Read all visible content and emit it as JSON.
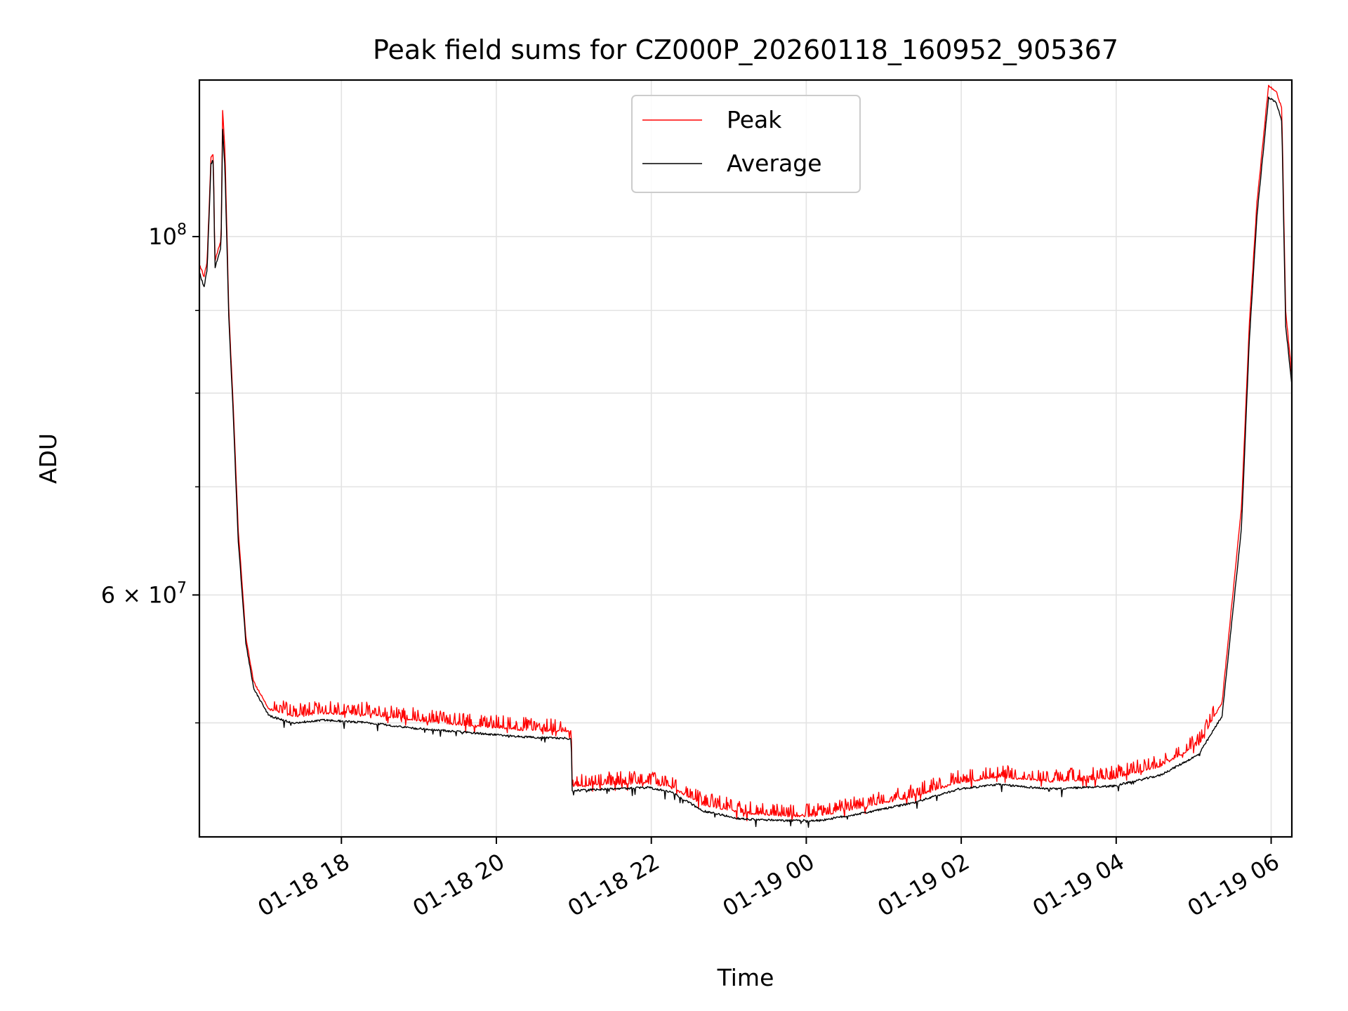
{
  "chart_data": {
    "type": "line",
    "title": "Peak field sums for CZ000P_20260118_160952_905367",
    "xlabel": "Time",
    "ylabel": "ADU",
    "yscale": "log",
    "grid": true,
    "legend_position": "upper-center",
    "x_unit": "hours since 2026-01-18 16:10",
    "x_range": [
      0,
      14.1
    ],
    "ylim": [
      42500000,
      125000000
    ],
    "x_ticks": [
      {
        "x": 1.833,
        "label": "01-18 18"
      },
      {
        "x": 3.833,
        "label": "01-18 20"
      },
      {
        "x": 5.833,
        "label": "01-18 22"
      },
      {
        "x": 7.833,
        "label": "01-19 00"
      },
      {
        "x": 9.833,
        "label": "01-19 02"
      },
      {
        "x": 11.833,
        "label": "01-19 04"
      },
      {
        "x": 13.833,
        "label": "01-19 06"
      }
    ],
    "y_major_ticks": [
      {
        "value": 100000000,
        "base": "10",
        "exp": "8"
      },
      {
        "value": 60000000,
        "base": "6 × 10",
        "exp": "7"
      }
    ],
    "y_minor_ticks": [
      50000000,
      70000000,
      80000000,
      90000000
    ],
    "series": [
      {
        "name": "Peak",
        "color": "#ff0000",
        "points": [
          [
            0,
            96000000
          ],
          [
            0.06,
            94500000
          ],
          [
            0.1,
            96500000
          ],
          [
            0.15,
            112000000
          ],
          [
            0.18,
            112500000
          ],
          [
            0.2,
            96500000
          ],
          [
            0.25,
            98500000
          ],
          [
            0.28,
            99500000
          ],
          [
            0.3,
            120000000
          ],
          [
            0.33,
            113000000
          ],
          [
            0.38,
            90000000
          ],
          [
            0.44,
            78000000
          ],
          [
            0.5,
            66000000
          ],
          [
            0.6,
            56500000
          ],
          [
            0.7,
            53000000
          ],
          [
            0.9,
            51000000
          ],
          [
            1.2,
            50500000
          ],
          [
            1.6,
            50700000
          ],
          [
            2.2,
            50600000
          ],
          [
            2.8,
            50200000
          ],
          [
            3.5,
            49800000
          ],
          [
            4.2,
            49500000
          ],
          [
            4.8,
            49400000
          ],
          [
            4.81,
            45700000
          ],
          [
            5.3,
            45800000
          ],
          [
            5.8,
            45900000
          ],
          [
            6.1,
            45600000
          ],
          [
            6.5,
            44500000
          ],
          [
            7.0,
            44000000
          ],
          [
            7.5,
            43800000
          ],
          [
            8.0,
            43800000
          ],
          [
            8.5,
            44300000
          ],
          [
            9.2,
            45000000
          ],
          [
            9.8,
            45900000
          ],
          [
            10.3,
            46300000
          ],
          [
            11.0,
            46000000
          ],
          [
            11.8,
            46200000
          ],
          [
            12.4,
            47000000
          ],
          [
            12.9,
            48500000
          ],
          [
            13.2,
            51500000
          ],
          [
            13.45,
            68000000
          ],
          [
            13.55,
            88000000
          ],
          [
            13.65,
            105000000
          ],
          [
            13.8,
            124000000
          ],
          [
            13.9,
            123000000
          ],
          [
            13.97,
            120000000
          ],
          [
            14.02,
            90000000
          ],
          [
            14.1,
            82000000
          ]
        ]
      },
      {
        "name": "Average",
        "color": "#000000",
        "points": [
          [
            0,
            95000000
          ],
          [
            0.06,
            93000000
          ],
          [
            0.1,
            95500000
          ],
          [
            0.15,
            111000000
          ],
          [
            0.18,
            111500000
          ],
          [
            0.2,
            95500000
          ],
          [
            0.25,
            97500000
          ],
          [
            0.28,
            98500000
          ],
          [
            0.3,
            117000000
          ],
          [
            0.33,
            110000000
          ],
          [
            0.38,
            89000000
          ],
          [
            0.44,
            77000000
          ],
          [
            0.5,
            65000000
          ],
          [
            0.6,
            56000000
          ],
          [
            0.7,
            52500000
          ],
          [
            0.9,
            50500000
          ],
          [
            1.2,
            50000000
          ],
          [
            1.6,
            50200000
          ],
          [
            2.2,
            50000000
          ],
          [
            2.8,
            49600000
          ],
          [
            3.5,
            49300000
          ],
          [
            4.2,
            49000000
          ],
          [
            4.8,
            48900000
          ],
          [
            4.81,
            45400000
          ],
          [
            5.3,
            45500000
          ],
          [
            5.8,
            45600000
          ],
          [
            6.1,
            45300000
          ],
          [
            6.5,
            44100000
          ],
          [
            7.0,
            43600000
          ],
          [
            7.5,
            43500000
          ],
          [
            8.0,
            43500000
          ],
          [
            8.5,
            43900000
          ],
          [
            9.2,
            44600000
          ],
          [
            9.8,
            45500000
          ],
          [
            10.3,
            45800000
          ],
          [
            11.0,
            45500000
          ],
          [
            11.8,
            45700000
          ],
          [
            12.4,
            46400000
          ],
          [
            12.9,
            47800000
          ],
          [
            13.2,
            50500000
          ],
          [
            13.45,
            66000000
          ],
          [
            13.55,
            86000000
          ],
          [
            13.65,
            103000000
          ],
          [
            13.8,
            122000000
          ],
          [
            13.9,
            121000000
          ],
          [
            13.97,
            118000000
          ],
          [
            14.02,
            88000000
          ],
          [
            14.1,
            81000000
          ]
        ]
      }
    ]
  }
}
